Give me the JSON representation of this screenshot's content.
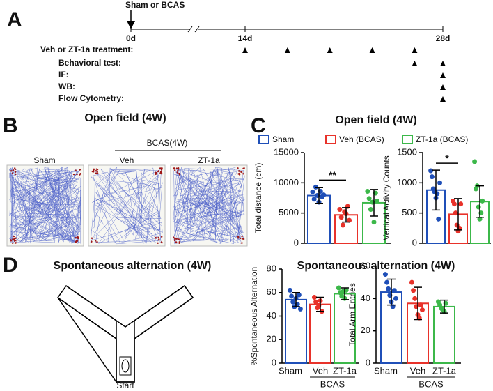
{
  "panel_a": {
    "letter": "A",
    "intervention": "Sham or BCAS",
    "ticks": [
      {
        "value": 0,
        "label": "0d"
      },
      {
        "value": 14,
        "label": "14d"
      },
      {
        "value": 28,
        "label": "28d"
      }
    ],
    "rows": [
      {
        "label": "Veh or ZT-1a treatment:",
        "days": [
          14,
          17,
          20,
          23,
          26
        ]
      },
      {
        "label": "Behavioral test:",
        "days": [
          26,
          28
        ]
      },
      {
        "label": "IF:",
        "days": [
          28
        ]
      },
      {
        "label": "WB:",
        "days": [
          28
        ]
      },
      {
        "label": "Flow Cytometry:",
        "days": [
          28
        ]
      }
    ]
  },
  "panel_b": {
    "letter": "B",
    "title": "Open field (4W)",
    "group_label": "BCAS(4W)",
    "labels": [
      "Sham",
      "Veh",
      "ZT-1a"
    ]
  },
  "panel_c": {
    "letter": "C",
    "title": "Open field (4W)",
    "legend": [
      {
        "name": "Sham",
        "color": "#1f4fb8"
      },
      {
        "name": "Veh (BCAS)",
        "color": "#e8322a"
      },
      {
        "name": "ZT-1a (BCAS)",
        "color": "#3cb84a"
      }
    ]
  },
  "panel_d": {
    "letter": "D",
    "title_left": "Spontaneous alternation (4W)",
    "title_right": "Spontaneous alternation (4W)",
    "maze_label": "Start"
  },
  "chart_data": [
    {
      "type": "bar",
      "ylabel": "Total distance (cm)",
      "ylim": [
        0,
        15000
      ],
      "yticks": [
        0,
        5000,
        10000,
        15000
      ],
      "colors": [
        "#1f4fb8",
        "#e8322a",
        "#3cb84a"
      ],
      "values": [
        7900,
        4700,
        6700
      ],
      "errors": [
        1300,
        1200,
        2200
      ],
      "points": [
        [
          8500,
          7300,
          9300,
          7900,
          6800,
          8600,
          7700,
          8000
        ],
        [
          5600,
          4300,
          3000,
          5200,
          4900,
          6100,
          3800
        ],
        [
          8600,
          7400,
          5600,
          6800,
          3500,
          8300,
          7000
        ]
      ],
      "significance": {
        "label": "**",
        "between": [
          0,
          1
        ]
      }
    },
    {
      "type": "bar",
      "ylabel": "Vertical Activity Counts",
      "ylim": [
        0,
        1500
      ],
      "yticks": [
        0,
        500,
        1000,
        1500
      ],
      "colors": [
        "#1f4fb8",
        "#e8322a",
        "#3cb84a"
      ],
      "values": [
        880,
        480,
        690
      ],
      "errors": [
        330,
        260,
        260
      ],
      "points": [
        [
          1200,
          1100,
          900,
          850,
          750,
          820,
          400,
          1000
        ],
        [
          700,
          650,
          500,
          300,
          200,
          250,
          650
        ],
        [
          1350,
          900,
          950,
          600,
          400,
          500,
          700
        ]
      ],
      "significance": {
        "label": "*",
        "between": [
          0,
          1
        ]
      }
    },
    {
      "type": "bar",
      "ylabel": "%Spontaneous Alternation",
      "ylim": [
        0,
        80
      ],
      "yticks": [
        0,
        20,
        40,
        60,
        80
      ],
      "categories": [
        "Sham",
        "Veh",
        "ZT-1a"
      ],
      "group_label": "BCAS",
      "colors": [
        "#1f4fb8",
        "#e8322a",
        "#3cb84a"
      ],
      "values": [
        54,
        50,
        59
      ],
      "errors": [
        6,
        6,
        5
      ],
      "points": [
        [
          62,
          57,
          52,
          48,
          55,
          50,
          58,
          46
        ],
        [
          56,
          52,
          47,
          49,
          53,
          44
        ],
        [
          64,
          60,
          57,
          61,
          55,
          62
        ]
      ]
    },
    {
      "type": "bar",
      "ylabel": "Total Arm Entries",
      "ylim": [
        0,
        60
      ],
      "yticks": [
        0,
        20,
        40,
        60
      ],
      "categories": [
        "Sham",
        "Veh",
        "ZT-1a"
      ],
      "group_label": "BCAS",
      "colors": [
        "#1f4fb8",
        "#e8322a",
        "#3cb84a"
      ],
      "values": [
        44,
        37,
        35
      ],
      "errors": [
        8,
        10,
        4
      ],
      "points": [
        [
          55,
          50,
          46,
          42,
          38,
          35,
          45,
          40
        ],
        [
          50,
          45,
          40,
          35,
          30,
          28,
          36,
          33
        ],
        [
          38,
          36,
          34,
          33,
          32,
          37
        ]
      ]
    }
  ]
}
